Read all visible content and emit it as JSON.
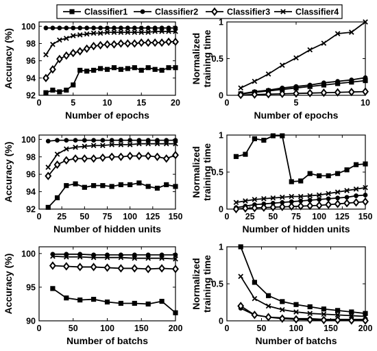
{
  "legend": {
    "items": [
      {
        "label": "Classifier1",
        "marker": "square"
      },
      {
        "label": "Classifier2",
        "marker": "circle"
      },
      {
        "label": "Classifier3",
        "marker": "diamond"
      },
      {
        "label": "Classifier4",
        "marker": "x"
      }
    ],
    "placement": "top-center"
  },
  "colors": {
    "series": "#000000",
    "background": "#ffffff"
  },
  "chart_data": [
    {
      "type": "line",
      "xlabel": "Number of epochs",
      "ylabel": "Accuracy (%)",
      "xlim": [
        0,
        20
      ],
      "ylim": [
        92,
        100.5
      ],
      "xticks": [
        0,
        5,
        10,
        15,
        20
      ],
      "yticks": [
        92,
        94,
        96,
        98,
        100
      ],
      "x": [
        1,
        2,
        3,
        4,
        5,
        6,
        7,
        8,
        9,
        10,
        11,
        12,
        13,
        14,
        15,
        16,
        17,
        18,
        19,
        20
      ],
      "series": [
        {
          "name": "Classifier1",
          "values": [
            92.3,
            92.6,
            92.4,
            92.6,
            93.2,
            94.9,
            94.8,
            94.9,
            95.1,
            95.0,
            95.2,
            95.0,
            95.1,
            95.2,
            94.9,
            95.2,
            95.0,
            94.9,
            95.2,
            95.2
          ]
        },
        {
          "name": "Classifier2",
          "values": [
            99.8,
            99.8,
            99.8,
            99.8,
            99.8,
            99.8,
            99.8,
            99.8,
            99.8,
            99.8,
            99.8,
            99.8,
            99.8,
            99.8,
            99.8,
            99.8,
            99.8,
            99.8,
            99.8,
            99.8
          ]
        },
        {
          "name": "Classifier3",
          "values": [
            94.0,
            95.0,
            96.2,
            96.6,
            96.9,
            97.1,
            97.4,
            97.7,
            97.8,
            97.9,
            97.9,
            98.0,
            98.0,
            98.0,
            98.1,
            98.1,
            98.1,
            98.1,
            98.2,
            98.2
          ]
        },
        {
          "name": "Classifier4",
          "values": [
            96.7,
            97.9,
            98.4,
            98.6,
            98.9,
            99.0,
            99.1,
            99.2,
            99.2,
            99.3,
            99.3,
            99.3,
            99.3,
            99.3,
            99.3,
            99.3,
            99.4,
            99.4,
            99.4,
            99.4
          ]
        }
      ]
    },
    {
      "type": "line",
      "xlabel": "Number of epochs",
      "ylabel": "Normalized training time",
      "xlim": [
        0,
        10
      ],
      "ylim": [
        0,
        1
      ],
      "xticks": [
        0,
        5,
        10
      ],
      "yticks": [
        0,
        0.5,
        1
      ],
      "x": [
        1,
        2,
        3,
        4,
        5,
        6,
        7,
        8,
        9,
        10
      ],
      "series": [
        {
          "name": "Classifier1",
          "values": [
            0.02,
            0.04,
            0.06,
            0.08,
            0.1,
            0.12,
            0.14,
            0.16,
            0.18,
            0.2
          ]
        },
        {
          "name": "Classifier2",
          "values": [
            0.02,
            0.05,
            0.07,
            0.1,
            0.12,
            0.14,
            0.17,
            0.19,
            0.21,
            0.24
          ]
        },
        {
          "name": "Classifier3",
          "values": [
            0.005,
            0.01,
            0.015,
            0.02,
            0.025,
            0.03,
            0.035,
            0.04,
            0.045,
            0.05
          ]
        },
        {
          "name": "Classifier4",
          "values": [
            0.1,
            0.19,
            0.29,
            0.41,
            0.51,
            0.62,
            0.71,
            0.84,
            0.86,
            1.0
          ]
        }
      ]
    },
    {
      "type": "line",
      "xlabel": "Number of hidden units",
      "ylabel": "Accuracy (%)",
      "xlim": [
        0,
        150
      ],
      "ylim": [
        92,
        100.5
      ],
      "xticks": [
        0,
        25,
        50,
        75,
        100,
        125,
        150
      ],
      "yticks": [
        92,
        94,
        96,
        98,
        100
      ],
      "x": [
        10,
        20,
        30,
        40,
        50,
        60,
        70,
        80,
        90,
        100,
        110,
        120,
        130,
        140,
        150
      ],
      "series": [
        {
          "name": "Classifier1",
          "values": [
            92.2,
            93.3,
            94.7,
            94.9,
            94.5,
            94.7,
            94.7,
            94.6,
            94.8,
            94.8,
            95.0,
            94.6,
            94.4,
            94.8,
            94.6
          ]
        },
        {
          "name": "Classifier2",
          "values": [
            99.8,
            99.9,
            99.9,
            99.9,
            99.9,
            99.9,
            99.9,
            99.9,
            99.9,
            99.9,
            99.9,
            99.9,
            99.9,
            99.9,
            99.9
          ]
        },
        {
          "name": "Classifier3",
          "values": [
            95.8,
            97.1,
            97.6,
            97.8,
            97.8,
            97.8,
            97.9,
            98.0,
            98.0,
            98.1,
            98.1,
            98.1,
            98.0,
            97.8,
            98.2
          ]
        },
        {
          "name": "Classifier4",
          "values": [
            96.8,
            98.3,
            98.9,
            99.1,
            99.2,
            99.3,
            99.3,
            99.4,
            99.4,
            99.4,
            99.5,
            99.5,
            99.5,
            99.5,
            99.5
          ]
        }
      ]
    },
    {
      "type": "line",
      "xlabel": "Number of hidden units",
      "ylabel": "Normalized training time",
      "xlim": [
        0,
        150
      ],
      "ylim": [
        0,
        1
      ],
      "xticks": [
        0,
        25,
        50,
        75,
        100,
        125,
        150
      ],
      "yticks": [
        0,
        0.5,
        1
      ],
      "x": [
        10,
        20,
        30,
        40,
        50,
        60,
        70,
        80,
        90,
        100,
        110,
        120,
        130,
        140,
        150
      ],
      "series": [
        {
          "name": "Classifier1",
          "values": [
            0.71,
            0.74,
            0.95,
            0.93,
            0.99,
            0.99,
            0.37,
            0.38,
            0.48,
            0.45,
            0.45,
            0.48,
            0.53,
            0.6,
            0.61
          ]
        },
        {
          "name": "Classifier2",
          "values": [
            0.02,
            0.04,
            0.06,
            0.07,
            0.08,
            0.09,
            0.1,
            0.11,
            0.12,
            0.13,
            0.14,
            0.15,
            0.16,
            0.18,
            0.19
          ]
        },
        {
          "name": "Classifier3",
          "values": [
            0.0,
            0.01,
            0.015,
            0.02,
            0.025,
            0.03,
            0.035,
            0.04,
            0.045,
            0.05,
            0.06,
            0.07,
            0.08,
            0.09,
            0.1
          ]
        },
        {
          "name": "Classifier4",
          "values": [
            0.09,
            0.11,
            0.13,
            0.14,
            0.15,
            0.16,
            0.17,
            0.17,
            0.18,
            0.19,
            0.21,
            0.23,
            0.25,
            0.27,
            0.29
          ]
        }
      ]
    },
    {
      "type": "line",
      "xlabel": "Number of batchs",
      "ylabel": "Accuracy (%)",
      "xlim": [
        0,
        200
      ],
      "ylim": [
        90,
        101
      ],
      "xticks": [
        0,
        50,
        100,
        150,
        200
      ],
      "yticks": [
        90,
        95,
        100
      ],
      "x": [
        20,
        40,
        60,
        80,
        100,
        120,
        140,
        160,
        180,
        200
      ],
      "series": [
        {
          "name": "Classifier1",
          "values": [
            94.8,
            93.4,
            93.1,
            93.2,
            92.8,
            92.6,
            92.6,
            92.5,
            92.9,
            91.2
          ]
        },
        {
          "name": "Classifier2",
          "values": [
            99.9,
            99.9,
            99.9,
            99.8,
            99.8,
            99.8,
            99.8,
            99.8,
            99.8,
            99.8
          ]
        },
        {
          "name": "Classifier3",
          "values": [
            98.2,
            98.1,
            98.0,
            98.0,
            97.9,
            97.8,
            97.8,
            97.7,
            97.8,
            97.7
          ]
        },
        {
          "name": "Classifier4",
          "values": [
            99.6,
            99.5,
            99.5,
            99.4,
            99.4,
            99.4,
            99.3,
            99.3,
            99.3,
            99.2
          ]
        }
      ]
    },
    {
      "type": "line",
      "xlabel": "Number of batchs",
      "ylabel": "Normalized training time",
      "xlim": [
        0,
        200
      ],
      "ylim": [
        0,
        1
      ],
      "xticks": [
        0,
        50,
        100,
        150,
        200
      ],
      "yticks": [
        0,
        0.5,
        1
      ],
      "x": [
        20,
        40,
        60,
        80,
        100,
        120,
        140,
        160,
        180,
        200
      ],
      "series": [
        {
          "name": "Classifier1",
          "values": [
            1.0,
            0.52,
            0.34,
            0.26,
            0.22,
            0.19,
            0.16,
            0.14,
            0.12,
            0.1
          ]
        },
        {
          "name": "Classifier2",
          "values": [
            0.17,
            0.08,
            0.05,
            0.04,
            0.03,
            0.03,
            0.02,
            0.02,
            0.02,
            0.02
          ]
        },
        {
          "name": "Classifier3",
          "values": [
            0.2,
            0.08,
            0.05,
            0.03,
            0.02,
            0.015,
            0.01,
            0.01,
            0.005,
            0.005
          ]
        },
        {
          "name": "Classifier4",
          "values": [
            0.6,
            0.3,
            0.2,
            0.15,
            0.12,
            0.1,
            0.09,
            0.08,
            0.07,
            0.06
          ]
        }
      ]
    }
  ]
}
